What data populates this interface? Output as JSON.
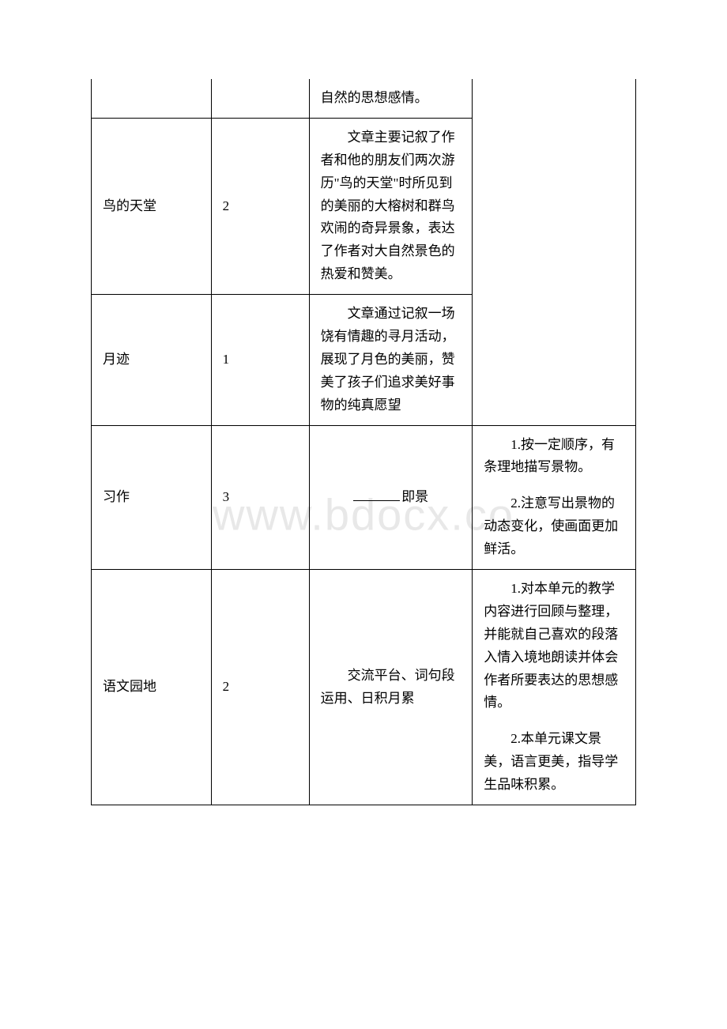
{
  "watermark": "www.bdocx.co",
  "rows": {
    "r0": {
      "c3": "自然的思想感情。"
    },
    "r1": {
      "c1": "鸟的天堂",
      "c2": "2",
      "c3": "　　文章主要记叙了作者和他的朋友们两次游历\"鸟的天堂\"时所见到的美丽的大榕树和群鸟欢闹的奇异景象，表达了作者对大自然景色的热爱和赞美。"
    },
    "r2": {
      "c1": "月迹",
      "c2": "1",
      "c3": "　　文章通过记叙一场饶有情趣的寻月活动，展现了月色的美丽，赞美了孩子们追求美好事物的纯真愿望"
    },
    "r3": {
      "c1": "习作",
      "c2": "3",
      "c3_suffix": "即景",
      "c4_p1": "1.按一定顺序，有条理地描写景物。",
      "c4_p2": "2.注意写出景物的动态变化，使画面更加鲜活。"
    },
    "r4": {
      "c1": "语文园地",
      "c2": "2",
      "c3": "　　交流平台、词句段运用、日积月累",
      "c4_p1": "1.对本单元的教学内容进行回顾与整理，并能就自己喜欢的段落入情入境地朗读并体会作者所要表达的思想感情。",
      "c4_p2": "2.本单元课文景美，语言更美，指导学生品味积累。"
    }
  }
}
